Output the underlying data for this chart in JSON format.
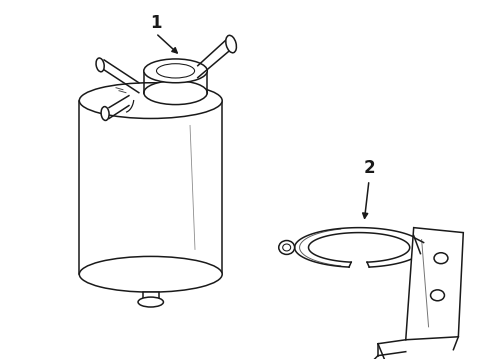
{
  "background_color": "#ffffff",
  "line_color": "#1a1a1a",
  "lw": 1.1,
  "label1": "1",
  "label2": "2",
  "fig_w": 4.9,
  "fig_h": 3.6,
  "dpi": 100
}
